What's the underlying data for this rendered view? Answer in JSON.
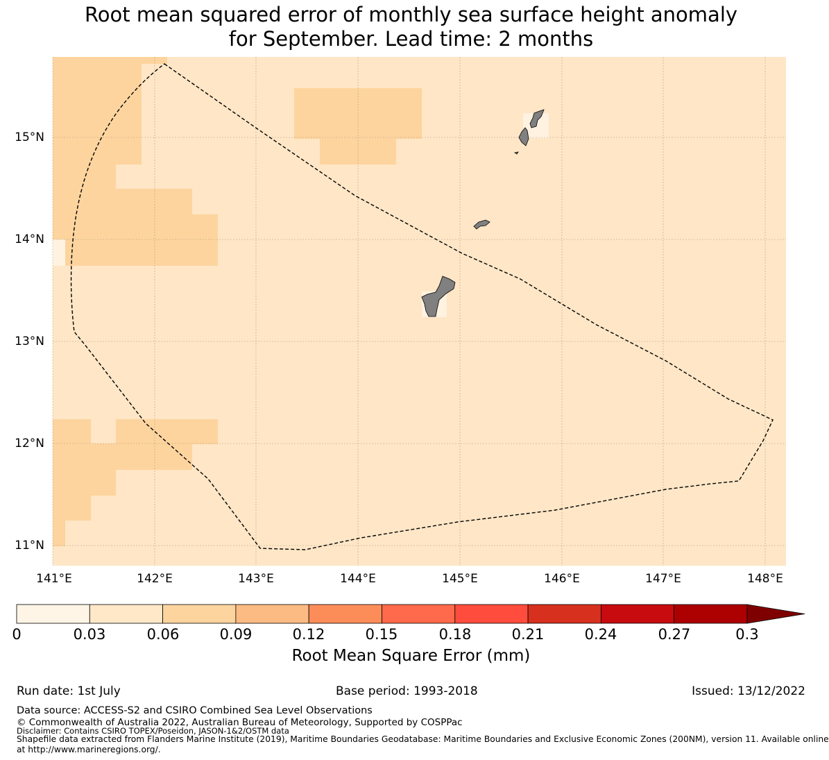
{
  "title": {
    "line1": "Root mean squared error of monthly sea surface height anomaly",
    "line2": "for September. Lead time: 2 months"
  },
  "map": {
    "lon_range": [
      141.0,
      148.2
    ],
    "lat_range": [
      10.8,
      15.8
    ],
    "lon_ticks": [
      "141°E",
      "142°E",
      "143°E",
      "144°E",
      "145°E",
      "146°E",
      "147°E",
      "148°E"
    ],
    "lat_ticks": [
      "15°N",
      "14°N",
      "13°N",
      "12°N",
      "11°N"
    ],
    "background_class": "0.03-0.06",
    "higher_error_class": "0.06-0.09",
    "colors": {
      "ocean": "#fee6c6",
      "higher": "#fdd49e",
      "lowest": "#fff2e0",
      "land": "#808080",
      "boundary": "#000000"
    },
    "boundary_style": "dashed",
    "boundary_name": "Maritime boundary (EEZ)",
    "land_name": "Islands"
  },
  "colorbar": {
    "ticks": [
      "0",
      "0.03",
      "0.06",
      "0.09",
      "0.12",
      "0.15",
      "0.18",
      "0.21",
      "0.24",
      "0.27",
      "0.3"
    ],
    "colors": [
      "#fff5e6",
      "#fee8c8",
      "#fdd49e",
      "#fdbb84",
      "#fc8d59",
      "#fe6a4b",
      "#ff4c3c",
      "#d7301f",
      "#c80b0e",
      "#ad0000",
      "#7f0000"
    ],
    "extend": "max",
    "label": "Root Mean Square Error (mm)"
  },
  "footer": {
    "run_date": "Run date: 1st July",
    "base_period": "Base period: 1993-2018",
    "issued": "Issued: 13/12/2022",
    "data_source": "Data source: ACCESS-S2 and CSIRO Combined Sea Level Observations",
    "copyright": "© Commonwealth of Australia 2022, Australian Bureau of Meteorology, Supported by COSPPac",
    "disclaimer": "Disclaimer: Contains CSIRO TOPEX/Poseidon, JASON-1&2/OSTM data",
    "shapefile_line1": "Shapefile data extracted from Flanders Marine Institute (2019), Maritime Boundaries Geodatabase: Maritime Boundaries and Exclusive Economic Zones (200NM), version 11. Available online",
    "shapefile_line2": "at http://www.marineregions.org/."
  }
}
